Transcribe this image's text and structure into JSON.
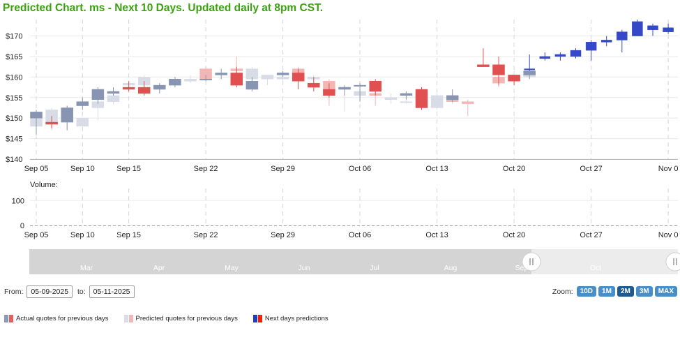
{
  "header": {
    "title": "Predicted Chart. ms - Next 10 Days. Updated daily at 8pm CST."
  },
  "chart_data": {
    "type": "candlestick",
    "y_axis": {
      "min": 140,
      "max": 174,
      "ticks": [
        140,
        145,
        150,
        155,
        160,
        165,
        170
      ],
      "prefix": "$"
    },
    "x_ticks": [
      {
        "i": 0,
        "label": "Sep 05"
      },
      {
        "i": 3,
        "label": "Sep 10"
      },
      {
        "i": 6,
        "label": "Sep 15"
      },
      {
        "i": 11,
        "label": "Sep 22"
      },
      {
        "i": 16,
        "label": "Sep 29"
      },
      {
        "i": 21,
        "label": "Oct 06"
      },
      {
        "i": 26,
        "label": "Oct 13"
      },
      {
        "i": 31,
        "label": "Oct 20"
      },
      {
        "i": 36,
        "label": "Oct 27"
      },
      {
        "i": 41,
        "label": "Nov 0"
      }
    ],
    "actual": [
      {
        "i": 0,
        "o": 150,
        "h": 152,
        "l": 146,
        "c": 151.5
      },
      {
        "i": 1,
        "o": 149,
        "h": 150.5,
        "l": 147.5,
        "c": 148.5
      },
      {
        "i": 2,
        "o": 149,
        "h": 153,
        "l": 147,
        "c": 152.5
      },
      {
        "i": 3,
        "o": 153,
        "h": 155,
        "l": 152,
        "c": 154
      },
      {
        "i": 4,
        "o": 154.5,
        "h": 157.5,
        "l": 153.5,
        "c": 157
      },
      {
        "i": 5,
        "o": 156,
        "h": 157.5,
        "l": 155.5,
        "c": 156.5
      },
      {
        "i": 6,
        "o": 157.5,
        "h": 159,
        "l": 156.5,
        "c": 157
      },
      {
        "i": 7,
        "o": 157.5,
        "h": 159,
        "l": 155.5,
        "c": 156
      },
      {
        "i": 8,
        "o": 157,
        "h": 158.5,
        "l": 156,
        "c": 158
      },
      {
        "i": 9,
        "o": 158,
        "h": 160,
        "l": 157.5,
        "c": 159.5
      },
      {
        "i": 11,
        "o": 159.5,
        "h": 160.5,
        "l": 159,
        "c": 159.5
      },
      {
        "i": 12,
        "o": 160.5,
        "h": 162,
        "l": 159.5,
        "c": 161
      },
      {
        "i": 13,
        "o": 161,
        "h": 162.5,
        "l": 157.5,
        "c": 158
      },
      {
        "i": 14,
        "o": 157,
        "h": 160,
        "l": 156.5,
        "c": 159
      },
      {
        "i": 16,
        "o": 160.5,
        "h": 161.5,
        "l": 160,
        "c": 161
      },
      {
        "i": 17,
        "o": 161,
        "h": 162,
        "l": 157,
        "c": 159
      },
      {
        "i": 18,
        "o": 158.5,
        "h": 160,
        "l": 156.5,
        "c": 157.5
      },
      {
        "i": 19,
        "o": 157,
        "h": 158.5,
        "l": 155,
        "c": 155.5
      },
      {
        "i": 20,
        "o": 157,
        "h": 158,
        "l": 155.5,
        "c": 157.5
      },
      {
        "i": 21,
        "o": 158,
        "h": 158.5,
        "l": 154,
        "c": 158
      },
      {
        "i": 22,
        "o": 159,
        "h": 159.5,
        "l": 155.5,
        "c": 156.5
      },
      {
        "i": 24,
        "o": 155.5,
        "h": 156.5,
        "l": 154.5,
        "c": 156
      },
      {
        "i": 25,
        "o": 157,
        "h": 157.5,
        "l": 152,
        "c": 152.5
      },
      {
        "i": 27,
        "o": 154.5,
        "h": 157,
        "l": 154,
        "c": 155.5
      },
      {
        "i": 29,
        "o": 163,
        "h": 167,
        "l": 162.5,
        "c": 162.5
      },
      {
        "i": 30,
        "o": 163,
        "h": 165,
        "l": 158,
        "c": 160.5
      },
      {
        "i": 31,
        "o": 160.5,
        "h": 160.5,
        "l": 158,
        "c": 159
      },
      {
        "i": 32,
        "o": 160.5,
        "h": 161.5,
        "l": 159.5,
        "c": 161.5
      }
    ],
    "predicted": [
      {
        "i": 0,
        "o": 148,
        "h": 151.5,
        "l": 147.5,
        "c": 150.5
      },
      {
        "i": 1,
        "o": 148.5,
        "h": 152.5,
        "l": 147,
        "c": 152
      },
      {
        "i": 2,
        "o": 149,
        "h": 151,
        "l": 147.5,
        "c": 149.5
      },
      {
        "i": 3,
        "o": 148,
        "h": 150,
        "l": 147.5,
        "c": 150
      },
      {
        "i": 4,
        "o": 152.5,
        "h": 155,
        "l": 149.5,
        "c": 154
      },
      {
        "i": 5,
        "o": 154,
        "h": 157,
        "l": 153.5,
        "c": 155.5
      },
      {
        "i": 6,
        "o": 158,
        "h": 159,
        "l": 157,
        "c": 158.5
      },
      {
        "i": 7,
        "o": 158,
        "h": 160.5,
        "l": 157.5,
        "c": 160
      },
      {
        "i": 8,
        "o": 157.5,
        "h": 158.5,
        "l": 157,
        "c": 158
      },
      {
        "i": 10,
        "o": 159,
        "h": 160.5,
        "l": 158.5,
        "c": 159.5
      },
      {
        "i": 11,
        "o": 162,
        "h": 162.5,
        "l": 159.5,
        "c": 159.5
      },
      {
        "i": 13,
        "o": 162,
        "h": 165,
        "l": 161,
        "c": 161.5
      },
      {
        "i": 14,
        "o": 159.5,
        "h": 162.5,
        "l": 159,
        "c": 162
      },
      {
        "i": 15,
        "o": 159.5,
        "h": 160.5,
        "l": 158,
        "c": 160.5
      },
      {
        "i": 16,
        "o": 159.5,
        "h": 160.5,
        "l": 158.5,
        "c": 160
      },
      {
        "i": 17,
        "o": 162,
        "h": 162.5,
        "l": 159,
        "c": 160
      },
      {
        "i": 18,
        "o": 159.5,
        "h": 160.5,
        "l": 158,
        "c": 160
      },
      {
        "i": 19,
        "o": 159,
        "h": 159.5,
        "l": 153,
        "c": 156.5
      },
      {
        "i": 20,
        "o": 157,
        "h": 157.5,
        "l": 151.5,
        "c": 157.5
      },
      {
        "i": 21,
        "o": 155.5,
        "h": 157,
        "l": 154.5,
        "c": 156.5
      },
      {
        "i": 22,
        "o": 156,
        "h": 158,
        "l": 153,
        "c": 155.5
      },
      {
        "i": 23,
        "o": 154.5,
        "h": 156,
        "l": 153.5,
        "c": 155
      },
      {
        "i": 24,
        "o": 154,
        "h": 154.5,
        "l": 153.5,
        "c": 154
      },
      {
        "i": 25,
        "o": 156,
        "h": 156.5,
        "l": 152,
        "c": 154.5
      },
      {
        "i": 26,
        "o": 152.5,
        "h": 156,
        "l": 152,
        "c": 155.5
      },
      {
        "i": 27,
        "o": 154.5,
        "h": 156,
        "l": 153.5,
        "c": 154
      },
      {
        "i": 28,
        "o": 154,
        "h": 154.5,
        "l": 150.5,
        "c": 153.5
      },
      {
        "i": 30,
        "o": 160,
        "h": 162,
        "l": 157.5,
        "c": 158.5
      },
      {
        "i": 31,
        "o": 160,
        "h": 161.5,
        "l": 159.5,
        "c": 160.5
      },
      {
        "i": 32,
        "o": 160,
        "h": 162,
        "l": 159.5,
        "c": 161.5
      }
    ],
    "forecast": [
      {
        "i": 32,
        "o": 162,
        "h": 165.5,
        "l": 161.5,
        "c": 162
      },
      {
        "i": 33,
        "o": 164.5,
        "h": 166,
        "l": 164,
        "c": 165
      },
      {
        "i": 34,
        "o": 165,
        "h": 166,
        "l": 164,
        "c": 165.5
      },
      {
        "i": 35,
        "o": 165,
        "h": 167,
        "l": 164.5,
        "c": 166.5
      },
      {
        "i": 36,
        "o": 166.5,
        "h": 169,
        "l": 164,
        "c": 168.5
      },
      {
        "i": 37,
        "o": 168.5,
        "h": 170,
        "l": 167.5,
        "c": 169
      },
      {
        "i": 38,
        "o": 169,
        "h": 171.5,
        "l": 166,
        "c": 171
      },
      {
        "i": 39,
        "o": 170,
        "h": 174,
        "l": 170,
        "c": 173.5
      },
      {
        "i": 40,
        "o": 171.5,
        "h": 173,
        "l": 170,
        "c": 172.5
      },
      {
        "i": 41,
        "o": 171,
        "h": 173,
        "l": 170.5,
        "c": 172
      }
    ],
    "volume": {
      "label": "Volume:",
      "ticks": [
        0,
        100
      ],
      "max": 140
    }
  },
  "navigator": {
    "labels": [
      "Mar",
      "Apr",
      "May",
      "Jun",
      "Jul",
      "Aug",
      "Sep",
      "Oct"
    ]
  },
  "range": {
    "from_label": "From:",
    "from_value": "05-09-2025",
    "to_label": "to:",
    "to_value": "05-11-2025"
  },
  "zoom": {
    "label": "Zoom:",
    "buttons": [
      "10D",
      "1M",
      "2M",
      "3M",
      "MAX"
    ],
    "active": "2M"
  },
  "legend": [
    {
      "label": "Actual quotes for previous days",
      "c1": "#8c9bb5",
      "c2": "#e36060"
    },
    {
      "label": "Predicted quotes for previous days",
      "c1": "#d9dde6",
      "c2": "#f0b8b8"
    },
    {
      "label": "Next days predictions",
      "c1": "#1f3cc4",
      "c2": "#ee2200"
    }
  ],
  "colors": {
    "actual_up": "#8795b2",
    "actual_down": "#e05050",
    "pred_up": "#d8dce6",
    "pred_down": "#f2b7b5",
    "fc_up": "#3548c8",
    "fc_down": "#f03a1a"
  }
}
